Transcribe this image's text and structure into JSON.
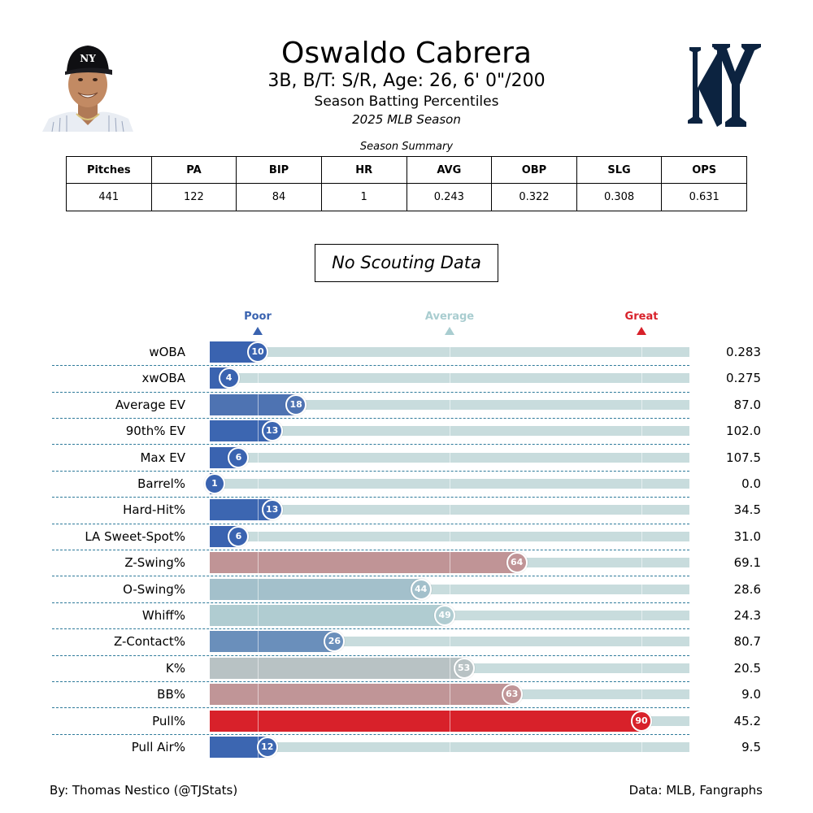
{
  "header": {
    "player_name": "Oswaldo Cabrera",
    "bio_line": "3B, B/T: S/R, Age: 26, 6' 0\"/200",
    "report_title": "Season Batting Percentiles",
    "season": "2025 MLB Season"
  },
  "summary": {
    "title": "Season Summary",
    "headers": [
      "Pitches",
      "PA",
      "BIP",
      "HR",
      "AVG",
      "OBP",
      "SLG",
      "OPS"
    ],
    "values": [
      "441",
      "122",
      "84",
      "1",
      "0.243",
      "0.322",
      "0.308",
      "0.631"
    ]
  },
  "scouting_note": "No Scouting Data",
  "scale": {
    "poor_label": "Poor",
    "average_label": "Average",
    "great_label": "Great",
    "poor_color": "#3a63b0",
    "average_color": "#a9cdd0",
    "great_color": "#d8212a"
  },
  "chart_data": {
    "type": "bar",
    "orientation": "horizontal",
    "xlim": [
      0,
      100
    ],
    "reference_marks": [
      10,
      50,
      90
    ],
    "categories": [
      "wOBA",
      "xwOBA",
      "Average EV",
      "90th% EV",
      "Max EV",
      "Barrel%",
      "Hard-Hit%",
      "LA Sweet-Spot%",
      "Z-Swing%",
      "O-Swing%",
      "Whiff%",
      "Z-Contact%",
      "K%",
      "BB%",
      "Pull%",
      "Pull Air%"
    ],
    "percentiles": [
      10,
      4,
      18,
      13,
      6,
      1,
      13,
      6,
      64,
      44,
      49,
      26,
      53,
      63,
      90,
      12
    ],
    "stat_values": [
      "0.283",
      "0.275",
      "87.0",
      "102.0",
      "107.5",
      "0.0",
      "34.5",
      "31.0",
      "69.1",
      "28.6",
      "24.3",
      "80.7",
      "20.5",
      "9.0",
      "45.2",
      "9.5"
    ],
    "bar_colors": [
      "#3a63b0",
      "#3a63b0",
      "#4e73b2",
      "#3c66b1",
      "#3a63b0",
      "#3a63b0",
      "#3c66b1",
      "#3a63b0",
      "#c09496",
      "#a3c0cb",
      "#b0ccd1",
      "#6a8fbb",
      "#b8c2c4",
      "#c09597",
      "#d8212a",
      "#3c66b1"
    ],
    "grid": true
  },
  "footer": {
    "credit": "By: Thomas Nestico (@TJStats)",
    "source": "Data: MLB, Fangraphs"
  },
  "icons": {
    "headshot": "player-headshot",
    "team_logo": "yankees-logo"
  }
}
